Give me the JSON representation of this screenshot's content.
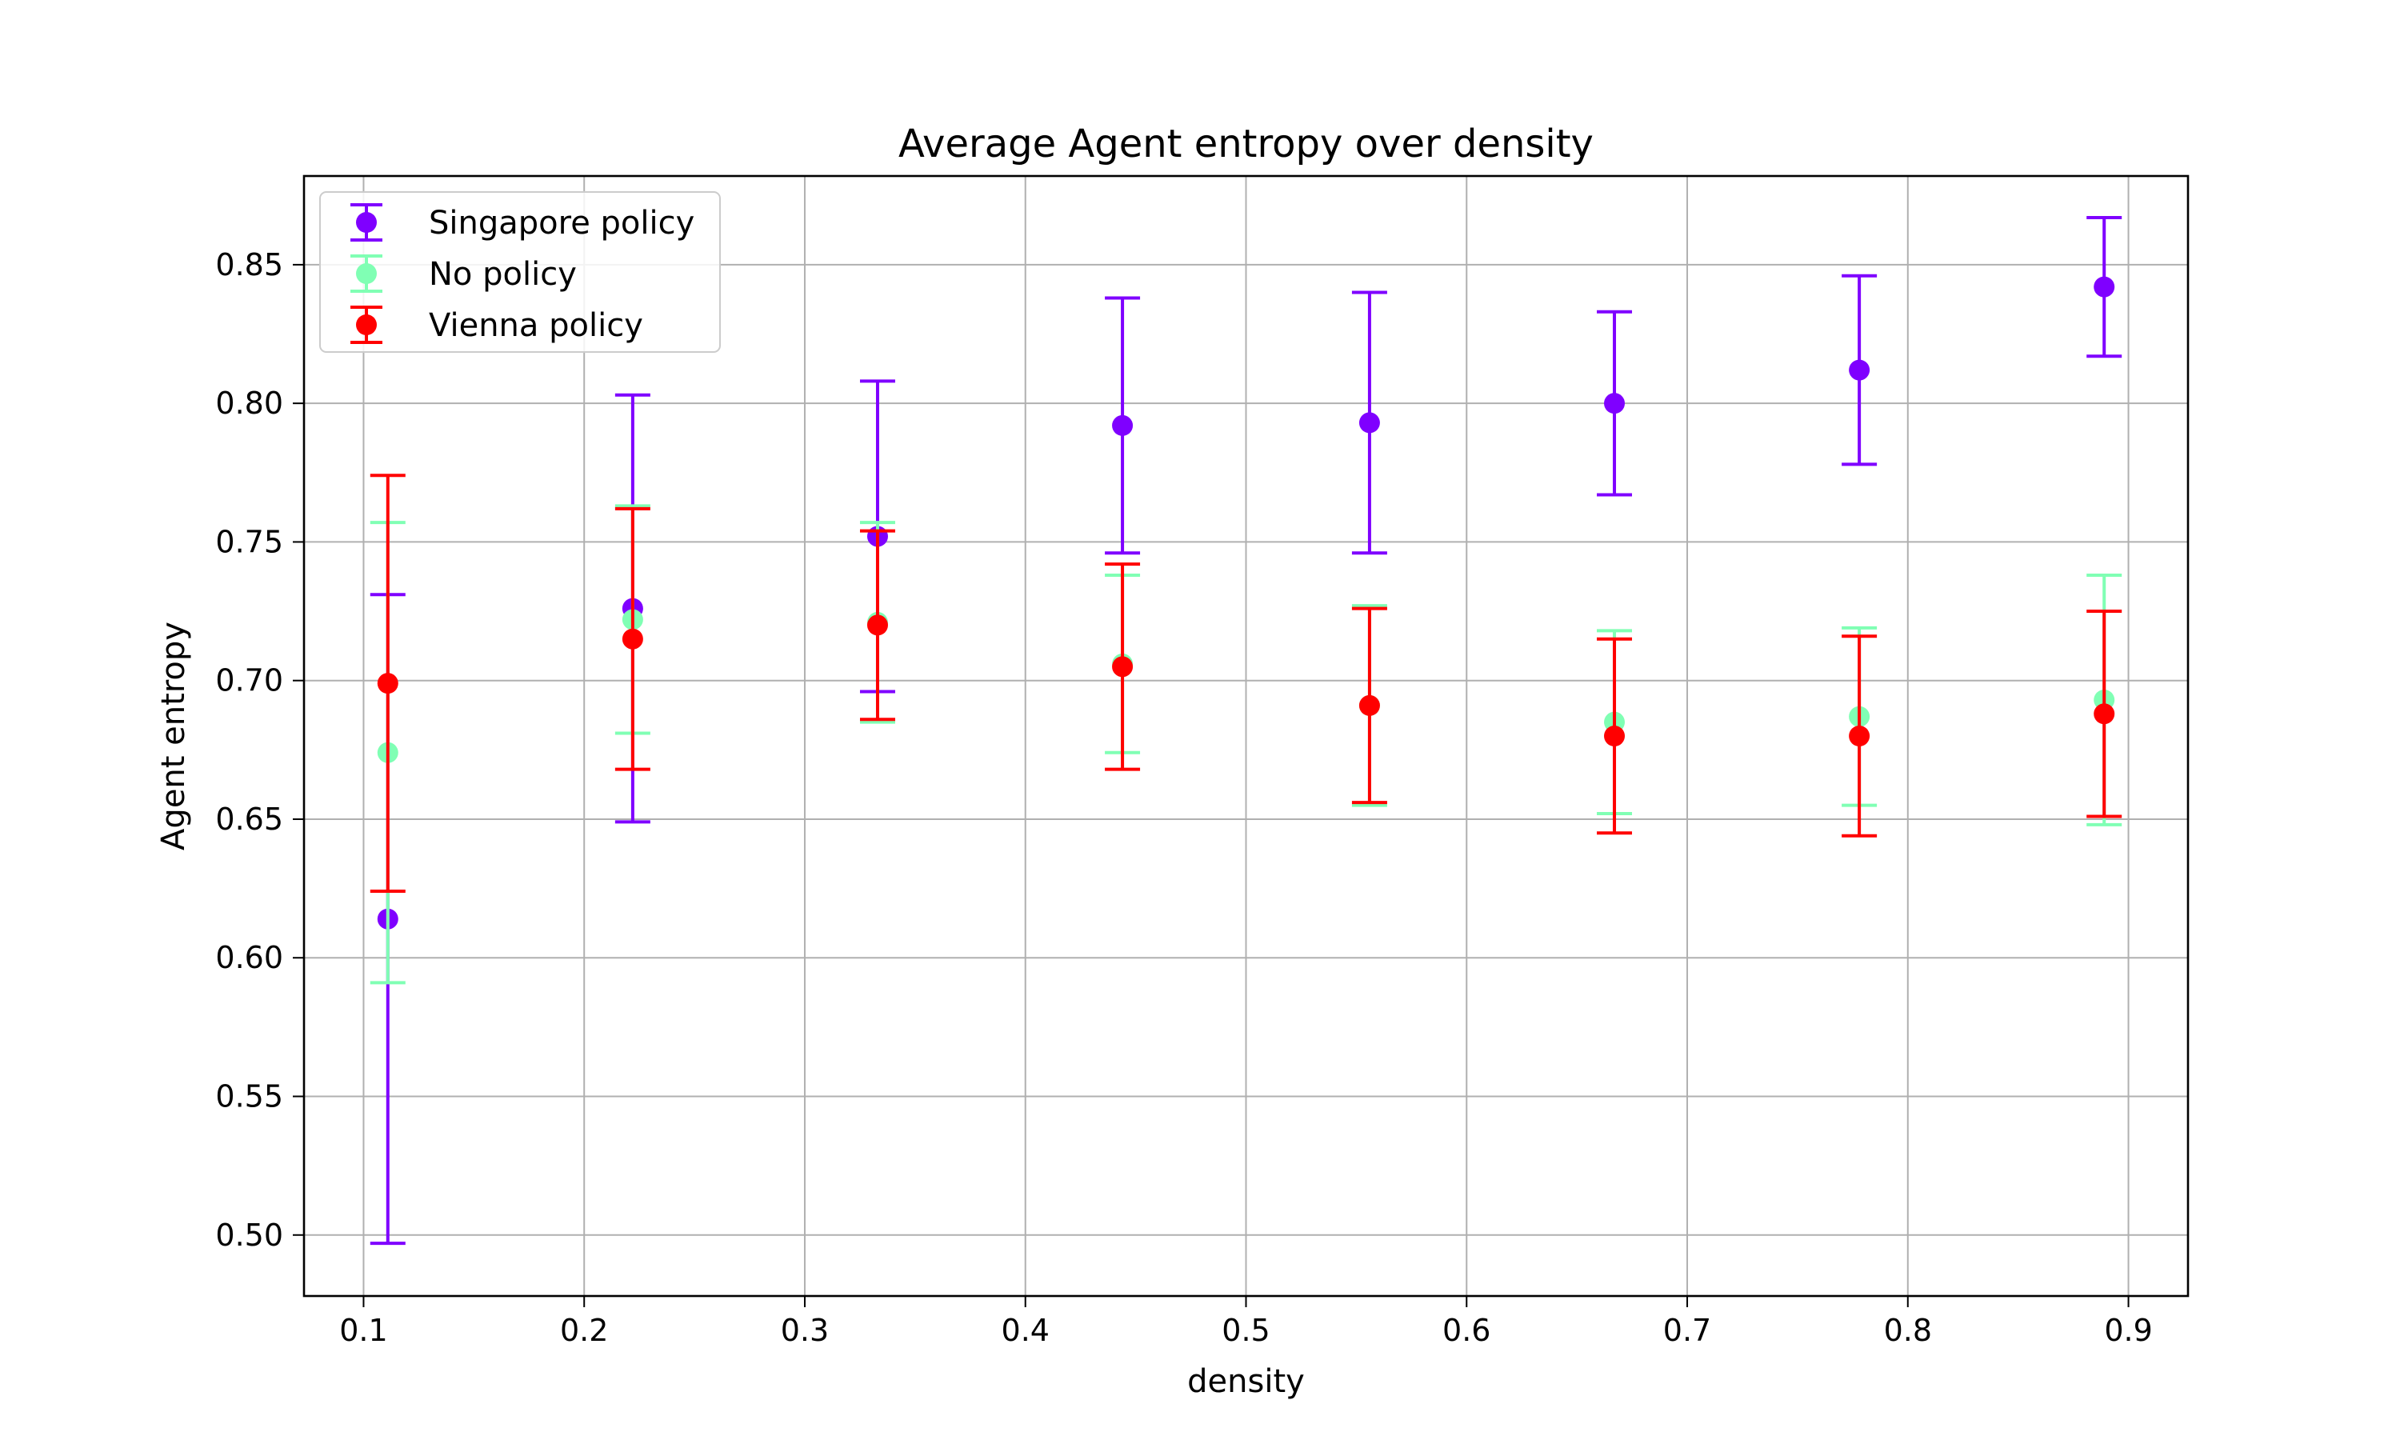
{
  "chart_data": {
    "type": "scatter",
    "title": "Average Agent entropy over density",
    "xlabel": "density",
    "ylabel": "Agent entropy",
    "xlim": [
      0.073,
      0.927
    ],
    "ylim": [
      0.478,
      0.882
    ],
    "xticks": [
      "0.1",
      "0.2",
      "0.3",
      "0.4",
      "0.5",
      "0.6",
      "0.7",
      "0.8",
      "0.9"
    ],
    "yticks": [
      "0.50",
      "0.55",
      "0.60",
      "0.65",
      "0.70",
      "0.75",
      "0.80",
      "0.85"
    ],
    "grid": true,
    "legend_position": "top-left",
    "x": [
      0.111,
      0.222,
      0.333,
      0.444,
      0.556,
      0.667,
      0.778,
      0.889
    ],
    "series": [
      {
        "name": "Singapore policy",
        "color": "#7f00ff",
        "y": [
          0.614,
          0.726,
          0.752,
          0.792,
          0.793,
          0.8,
          0.812,
          0.842
        ],
        "err": [
          0.117,
          0.077,
          0.056,
          0.046,
          0.047,
          0.033,
          0.034,
          0.025
        ]
      },
      {
        "name": "No policy",
        "color": "#80ffb4",
        "y": [
          0.674,
          0.722,
          0.721,
          0.706,
          0.691,
          0.685,
          0.687,
          0.693
        ],
        "err": [
          0.083,
          0.041,
          0.036,
          0.032,
          0.036,
          0.033,
          0.032,
          0.045
        ]
      },
      {
        "name": "Vienna policy",
        "color": "#ff0000",
        "y": [
          0.699,
          0.715,
          0.72,
          0.705,
          0.691,
          0.68,
          0.68,
          0.688
        ],
        "err": [
          0.075,
          0.047,
          0.034,
          0.037,
          0.035,
          0.035,
          0.036,
          0.037
        ]
      }
    ]
  }
}
